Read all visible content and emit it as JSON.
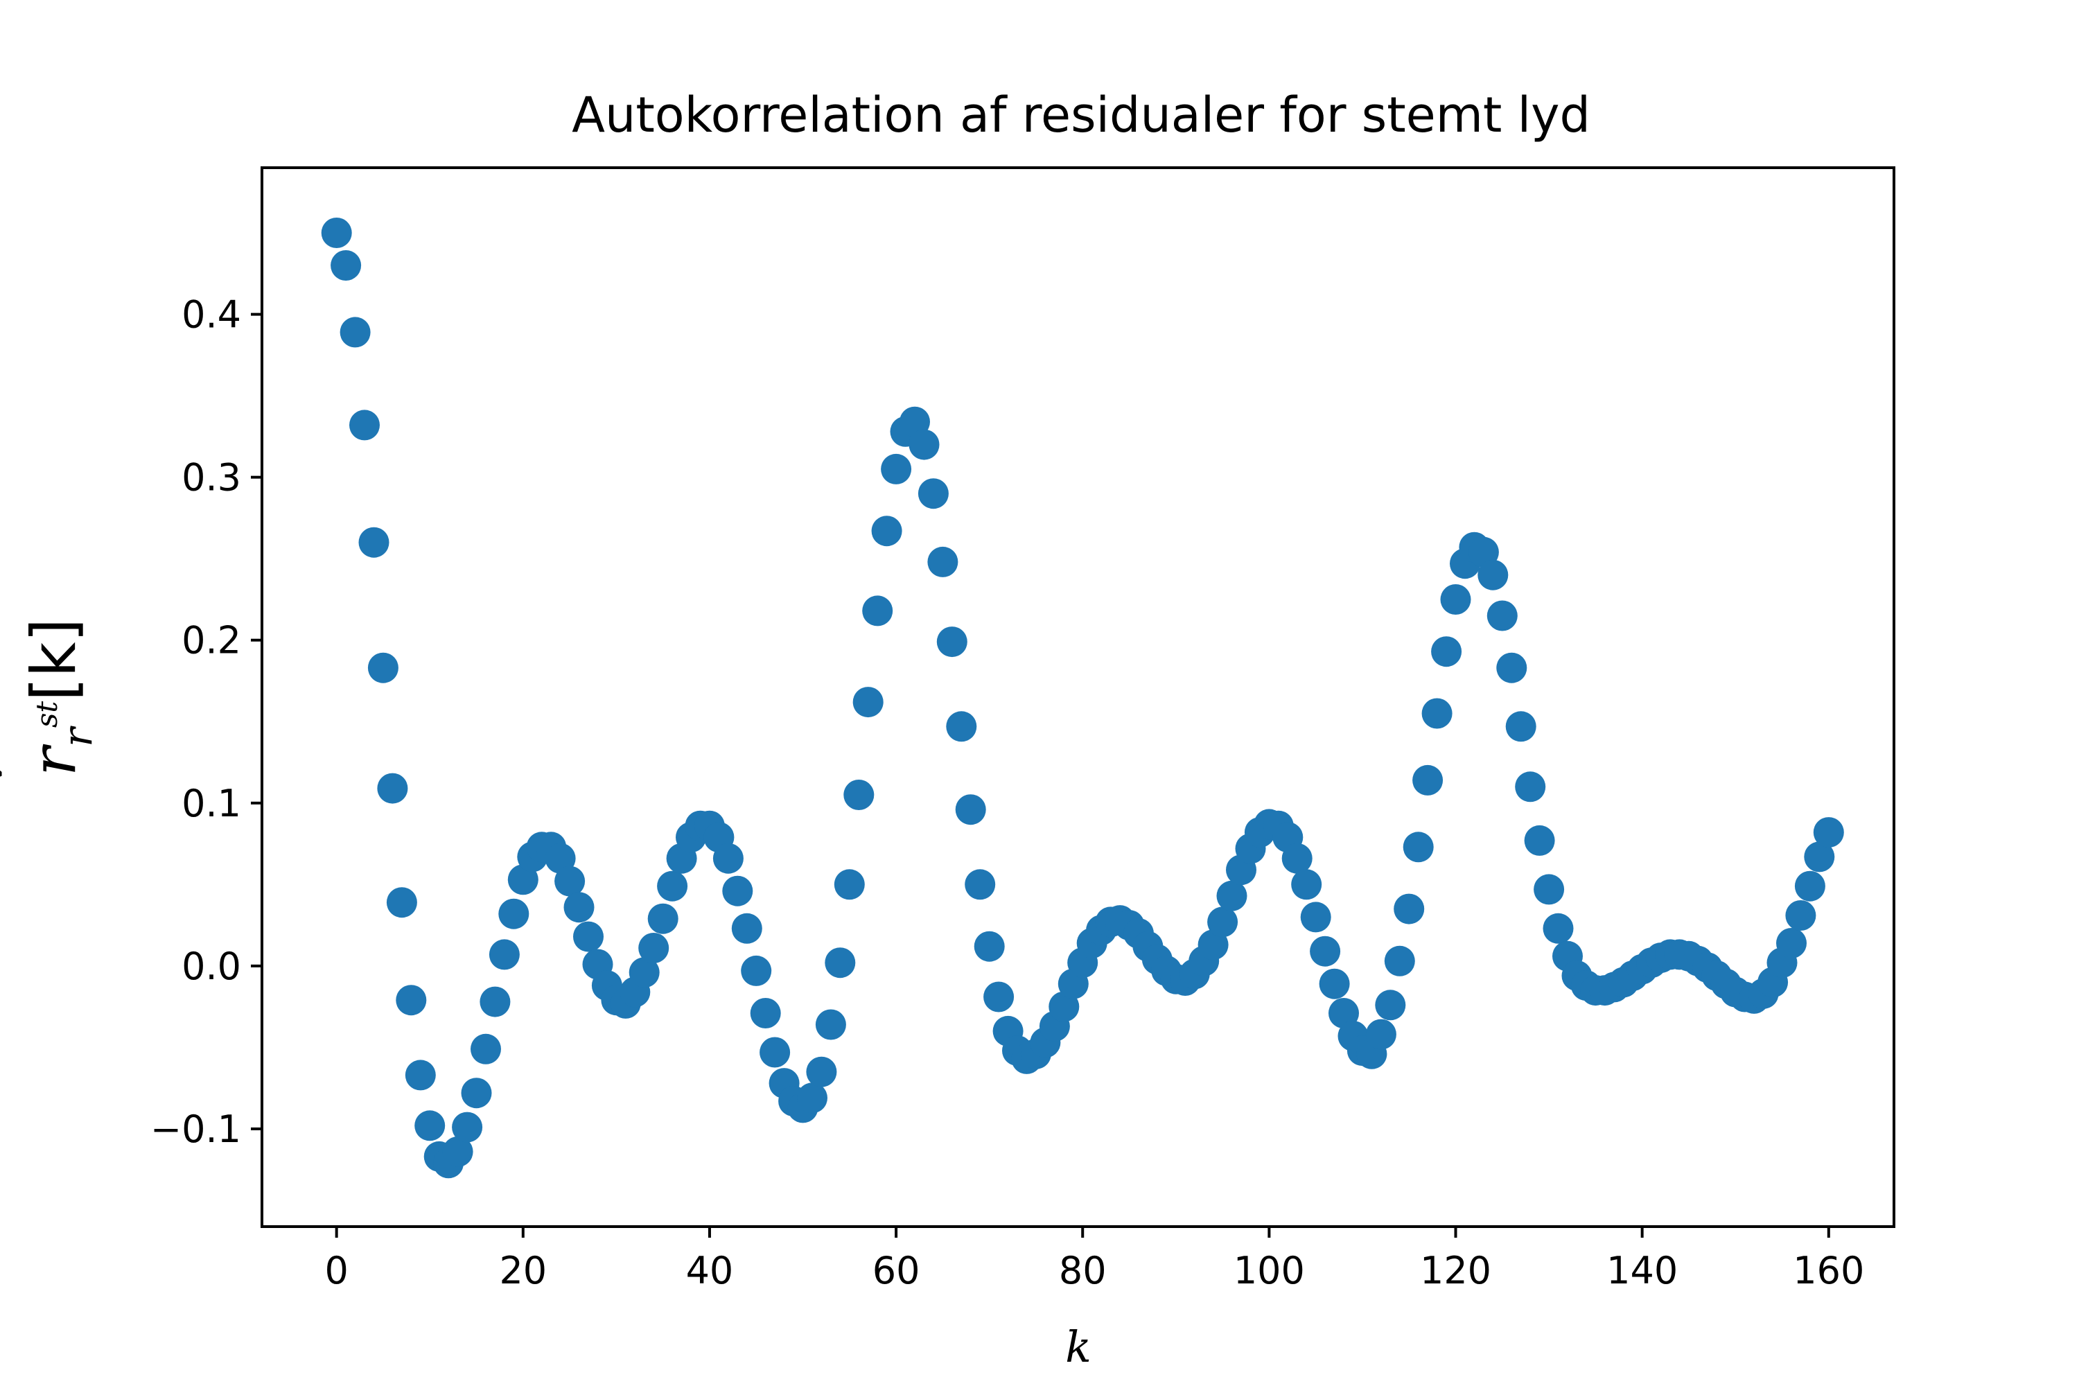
{
  "chart_data": {
    "type": "scatter",
    "title": "Autokorrelation af residualer for stemt lyd",
    "xlabel": "k",
    "ylabel": {
      "base": "r",
      "accent": "ˇ",
      "sub": "r",
      "sup": "st",
      "arg": "[k]"
    },
    "xlim": [
      -8,
      167
    ],
    "ylim": [
      -0.16,
      0.49
    ],
    "xticks": [
      0,
      20,
      40,
      60,
      80,
      100,
      120,
      140,
      160
    ],
    "xtick_labels": [
      "0",
      "20",
      "40",
      "60",
      "80",
      "100",
      "120",
      "140",
      "160"
    ],
    "yticks": [
      -0.1,
      0.0,
      0.1,
      0.2,
      0.3,
      0.4
    ],
    "ytick_labels": [
      "−0.1",
      "0.0",
      "0.1",
      "0.2",
      "0.3",
      "0.4"
    ],
    "grid": false,
    "marker_color": "#1f77b4",
    "series": [
      {
        "x_start": 0,
        "x_step": 1,
        "values": [
          0.45,
          0.43,
          0.389,
          0.332,
          0.26,
          0.183,
          0.109,
          0.039,
          -0.021,
          -0.067,
          -0.098,
          -0.117,
          -0.121,
          -0.114,
          -0.099,
          -0.078,
          -0.051,
          -0.022,
          0.007,
          0.032,
          0.053,
          0.067,
          0.073,
          0.073,
          0.066,
          0.052,
          0.036,
          0.018,
          0.001,
          -0.012,
          -0.021,
          -0.023,
          -0.016,
          -0.004,
          0.011,
          0.029,
          0.049,
          0.066,
          0.079,
          0.086,
          0.086,
          0.079,
          0.066,
          0.046,
          0.023,
          -0.003,
          -0.029,
          -0.053,
          -0.072,
          -0.083,
          -0.087,
          -0.081,
          -0.065,
          -0.036,
          0.002,
          0.05,
          0.105,
          0.162,
          0.218,
          0.267,
          0.305,
          0.328,
          0.334,
          0.32,
          0.29,
          0.248,
          0.199,
          0.147,
          0.096,
          0.05,
          0.012,
          -0.019,
          -0.04,
          -0.052,
          -0.057,
          -0.054,
          -0.047,
          -0.037,
          -0.025,
          -0.011,
          0.002,
          0.014,
          0.022,
          0.027,
          0.028,
          0.025,
          0.02,
          0.012,
          0.004,
          -0.003,
          -0.008,
          -0.009,
          -0.005,
          0.003,
          0.013,
          0.027,
          0.043,
          0.059,
          0.072,
          0.082,
          0.087,
          0.086,
          0.079,
          0.066,
          0.05,
          0.03,
          0.009,
          -0.011,
          -0.029,
          -0.043,
          -0.052,
          -0.054,
          -0.042,
          -0.024,
          0.003,
          0.035,
          0.073,
          0.114,
          0.155,
          0.193,
          0.225,
          0.247,
          0.257,
          0.254,
          0.24,
          0.215,
          0.183,
          0.147,
          0.11,
          0.077,
          0.047,
          0.023,
          0.006,
          -0.006,
          -0.012,
          -0.015,
          -0.015,
          -0.013,
          -0.01,
          -0.006,
          -0.002,
          0.002,
          0.005,
          0.007,
          0.007,
          0.006,
          0.003,
          -0.001,
          -0.006,
          -0.011,
          -0.016,
          -0.019,
          -0.02,
          -0.017,
          -0.01,
          0.002,
          0.014,
          0.031,
          0.049,
          0.067,
          0.082
        ]
      }
    ]
  }
}
